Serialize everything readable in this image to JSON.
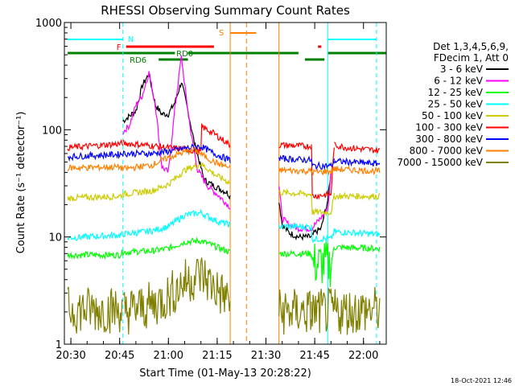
{
  "chart_data": {
    "type": "line",
    "title": "RHESSI Observing Summary Count Rates",
    "xlabel": "Start Time (01-May-13 20:28:22)",
    "ylabel": "Count Rate (s⁻¹ detector⁻¹)",
    "yscale": "log",
    "ylim": [
      1,
      1000
    ],
    "xlim": [
      "20:28",
      "22:07"
    ],
    "x_ticks": [
      "20:30",
      "20:45",
      "21:00",
      "21:15",
      "21:30",
      "21:45",
      "22:00"
    ],
    "y_ticks": [
      "1",
      "10",
      "100",
      "1000"
    ],
    "footer": "18-Oct-2021 12:46",
    "legend": {
      "position": "right",
      "header": [
        "Det 1,3,4,5,6,9,",
        "FDecim 1, Att 0"
      ],
      "entries": [
        {
          "label": "3 - 6 keV",
          "color": "#000000"
        },
        {
          "label": "6 - 12 keV",
          "color": "#ff00ff"
        },
        {
          "label": "12 - 25 keV",
          "color": "#00ff00"
        },
        {
          "label": "25 - 50 keV",
          "color": "#00ffff"
        },
        {
          "label": "50 - 100 keV",
          "color": "#cccc00"
        },
        {
          "label": "100 - 300 keV",
          "color": "#ff0000"
        },
        {
          "label": "300 - 800 keV",
          "color": "#0000ff"
        },
        {
          "label": "800 - 7000 keV",
          "color": "#ff8000"
        },
        {
          "label": "7000 - 15000 keV",
          "color": "#808000"
        }
      ]
    },
    "flag_labels": [
      "N",
      "F",
      "RD0",
      "RD6",
      "S"
    ],
    "segments": [
      [
        "20:28",
        "20:46"
      ],
      [
        "20:46",
        "21:19"
      ],
      [
        "21:34",
        "21:44"
      ],
      [
        "21:44",
        "21:51"
      ],
      [
        "21:51",
        "22:07"
      ]
    ],
    "series": [
      {
        "name": "3 - 6 keV",
        "color": "#000000",
        "points": [
          [
            "20:46",
            120
          ],
          [
            "20:50",
            150
          ],
          [
            "20:52",
            260
          ],
          [
            "20:54",
            330
          ],
          [
            "20:56",
            170
          ],
          [
            "20:58",
            140
          ],
          [
            "21:00",
            140
          ],
          [
            "21:02",
            180
          ],
          [
            "21:04",
            280
          ],
          [
            "21:06",
            150
          ],
          [
            "21:08",
            75
          ],
          [
            "21:11",
            34
          ],
          [
            "21:14",
            30
          ],
          [
            "21:18",
            26
          ],
          [
            "21:19",
            24
          ],
          [
            "21:34",
            22
          ],
          [
            "21:35",
            13
          ],
          [
            "21:37",
            11
          ],
          [
            "21:40",
            10
          ],
          [
            "21:44",
            10
          ],
          [
            "21:45",
            11
          ],
          [
            "21:47",
            12
          ],
          [
            "21:49",
            22
          ],
          [
            "21:50",
            40
          ]
        ]
      },
      {
        "name": "6 - 12 keV",
        "color": "#ff00ff",
        "points": [
          [
            "20:46",
            95
          ],
          [
            "20:48",
            110
          ],
          [
            "20:50",
            170
          ],
          [
            "20:52",
            210
          ],
          [
            "20:54",
            340
          ],
          [
            "20:56",
            170
          ],
          [
            "20:58",
            45
          ],
          [
            "21:00",
            40
          ],
          [
            "21:02",
            160
          ],
          [
            "21:04",
            480
          ],
          [
            "21:05",
            260
          ],
          [
            "21:07",
            90
          ],
          [
            "21:09",
            42
          ],
          [
            "21:12",
            30
          ],
          [
            "21:15",
            25
          ],
          [
            "21:19",
            19
          ],
          [
            "21:34",
            30
          ],
          [
            "21:35",
            15
          ],
          [
            "21:37",
            13
          ],
          [
            "21:40",
            12
          ],
          [
            "21:44",
            12
          ],
          [
            "21:46",
            14
          ],
          [
            "21:49",
            18
          ],
          [
            "21:50",
            38
          ]
        ]
      },
      {
        "name": "12 - 25 keV",
        "color": "#00ff00",
        "points": [
          [
            "20:29",
            6.8
          ],
          [
            "20:45",
            6.8
          ],
          [
            "20:46",
            7.2
          ],
          [
            "20:55",
            7.4
          ],
          [
            "21:00",
            7.8
          ],
          [
            "21:05",
            9.0
          ],
          [
            "21:10",
            9.2
          ],
          [
            "21:19",
            7.2
          ],
          [
            "21:34",
            7.0
          ],
          [
            "21:44",
            7.0
          ],
          [
            "21:44",
            5.6
          ],
          [
            "21:50",
            5.6
          ],
          [
            "21:51",
            8.0
          ],
          [
            "22:05",
            7.8
          ]
        ]
      },
      {
        "name": "25 - 50 keV",
        "color": "#00ffff",
        "points": [
          [
            "20:29",
            9.8
          ],
          [
            "20:45",
            10.4
          ],
          [
            "20:46",
            10.6
          ],
          [
            "20:55",
            11.4
          ],
          [
            "21:00",
            12.5
          ],
          [
            "21:05",
            16.0
          ],
          [
            "21:10",
            16.8
          ],
          [
            "21:15",
            14.0
          ],
          [
            "21:19",
            13.0
          ],
          [
            "21:34",
            12.6
          ],
          [
            "21:44",
            12.4
          ],
          [
            "21:44",
            9.6
          ],
          [
            "21:50",
            9.6
          ],
          [
            "21:51",
            11.2
          ],
          [
            "22:05",
            10.6
          ]
        ]
      },
      {
        "name": "50 - 100 keV",
        "color": "#cccc00",
        "points": [
          [
            "20:29",
            23
          ],
          [
            "20:45",
            24
          ],
          [
            "20:46",
            25
          ],
          [
            "20:55",
            27
          ],
          [
            "21:00",
            31
          ],
          [
            "21:05",
            42
          ],
          [
            "21:10",
            48
          ],
          [
            "21:15",
            37
          ],
          [
            "21:19",
            32
          ],
          [
            "21:34",
            26
          ],
          [
            "21:44",
            25
          ],
          [
            "21:44",
            17
          ],
          [
            "21:50",
            17
          ],
          [
            "21:51",
            24
          ],
          [
            "22:05",
            24
          ]
        ]
      },
      {
        "name": "100 - 300 keV",
        "color": "#ff0000",
        "points": [
          [
            "20:29",
            68
          ],
          [
            "20:45",
            74
          ],
          [
            "20:46",
            75
          ],
          [
            "20:55",
            71
          ],
          [
            "21:00",
            68
          ],
          [
            "21:05",
            66
          ],
          [
            "21:10",
            62
          ],
          [
            "21:10",
            108
          ],
          [
            "21:14",
            92
          ],
          [
            "21:19",
            72
          ],
          [
            "21:34",
            72
          ],
          [
            "21:44",
            70
          ],
          [
            "21:44",
            24
          ],
          [
            "21:50",
            25
          ],
          [
            "21:51",
            72
          ],
          [
            "21:55",
            68
          ],
          [
            "22:05",
            64
          ]
        ]
      },
      {
        "name": "300 - 800 keV",
        "color": "#0000ff",
        "points": [
          [
            "20:29",
            56
          ],
          [
            "20:45",
            59
          ],
          [
            "20:46",
            60
          ],
          [
            "20:55",
            60
          ],
          [
            "21:00",
            63
          ],
          [
            "21:05",
            67
          ],
          [
            "21:10",
            70
          ],
          [
            "21:14",
            60
          ],
          [
            "21:19",
            52
          ],
          [
            "21:34",
            54
          ],
          [
            "21:44",
            52
          ],
          [
            "21:44",
            46
          ],
          [
            "21:50",
            46
          ],
          [
            "21:51",
            51
          ],
          [
            "22:05",
            48
          ]
        ]
      },
      {
        "name": "800 - 7000 keV",
        "color": "#ff8000",
        "points": [
          [
            "20:29",
            44
          ],
          [
            "20:45",
            45
          ],
          [
            "20:46",
            43
          ],
          [
            "20:55",
            47
          ],
          [
            "21:00",
            55
          ],
          [
            "21:05",
            62
          ],
          [
            "21:08",
            65
          ],
          [
            "21:14",
            50
          ],
          [
            "21:19",
            44
          ],
          [
            "21:34",
            42
          ],
          [
            "21:44",
            41
          ],
          [
            "21:44",
            40
          ],
          [
            "21:50",
            41
          ],
          [
            "21:51",
            43
          ],
          [
            "22:05",
            41
          ]
        ]
      },
      {
        "name": "7000 - 15000 keV",
        "color": "#808000",
        "points": [
          [
            "20:29",
            2.1
          ],
          [
            "20:45",
            2.1
          ],
          [
            "20:46",
            2.0
          ],
          [
            "20:55",
            2.3
          ],
          [
            "21:00",
            2.8
          ],
          [
            "21:05",
            3.8
          ],
          [
            "21:10",
            4.5
          ],
          [
            "21:15",
            3.2
          ],
          [
            "21:19",
            2.5
          ],
          [
            "21:34",
            2.0
          ],
          [
            "21:44",
            2.0
          ],
          [
            "21:51",
            2.0
          ],
          [
            "22:05",
            2.1
          ]
        ]
      }
    ]
  }
}
